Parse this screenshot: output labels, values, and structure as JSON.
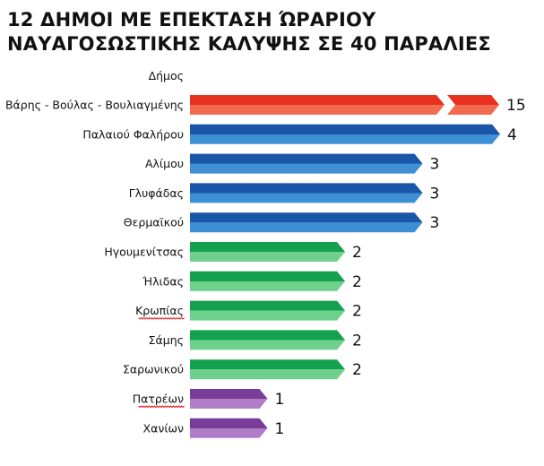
{
  "title_lines": [
    "12 ΔΗΜΟΙ ΜΕ ΕΠΕΚΤΑΣΗ ΏΡΑΡΙΟΥ",
    "ΝΑΥΑΓΟΣΩΣΤΙΚΗΣ ΚΑΛΥΨΗΣ ΣΕ 40 ΠΑΡΑΛΙΕΣ"
  ],
  "column_header": "Δήμος",
  "chart_data": {
    "type": "bar",
    "orientation": "horizontal",
    "title": "12 ΔΗΜΟΙ ΜΕ ΕΠΕΚΤΑΣΗ ΏΡΑΡΙΟΥ ΝΑΥΑΓΟΣΩΣΤΙΚΗΣ ΚΑΛΥΨΗΣ ΣΕ 40 ΠΑΡΑΛΙΕΣ",
    "categories": [
      "Βάρης - Βούλας - Βουλιαγμένης",
      "Παλαιού Φαλήρου",
      "Αλίμου",
      "Γλυφάδας",
      "Θερμαϊκού",
      "Ηγουμενίτσας",
      "Ήλιδας",
      "Κρωπίας",
      "Σάμης",
      "Σαρωνικού",
      "Πατρέων",
      "Χανίων"
    ],
    "values": [
      15,
      4,
      3,
      3,
      3,
      2,
      2,
      2,
      2,
      2,
      1,
      1
    ],
    "axis_break_on_first_bar": true,
    "spellcheck_underlined": [
      "Κρωπίας",
      "Πατρέων"
    ],
    "colors": {
      "15": {
        "top": "#e8301e",
        "bottom": "#f26a4f"
      },
      "4": {
        "top": "#1a56a8",
        "bottom": "#3e8fd4"
      },
      "3": {
        "top": "#1a56a8",
        "bottom": "#3e8fd4"
      },
      "2": {
        "top": "#14a14e",
        "bottom": "#6fcf8c"
      },
      "1": {
        "top": "#7a3c99",
        "bottom": "#b07ec9"
      }
    },
    "grid": false,
    "legend": "none"
  }
}
